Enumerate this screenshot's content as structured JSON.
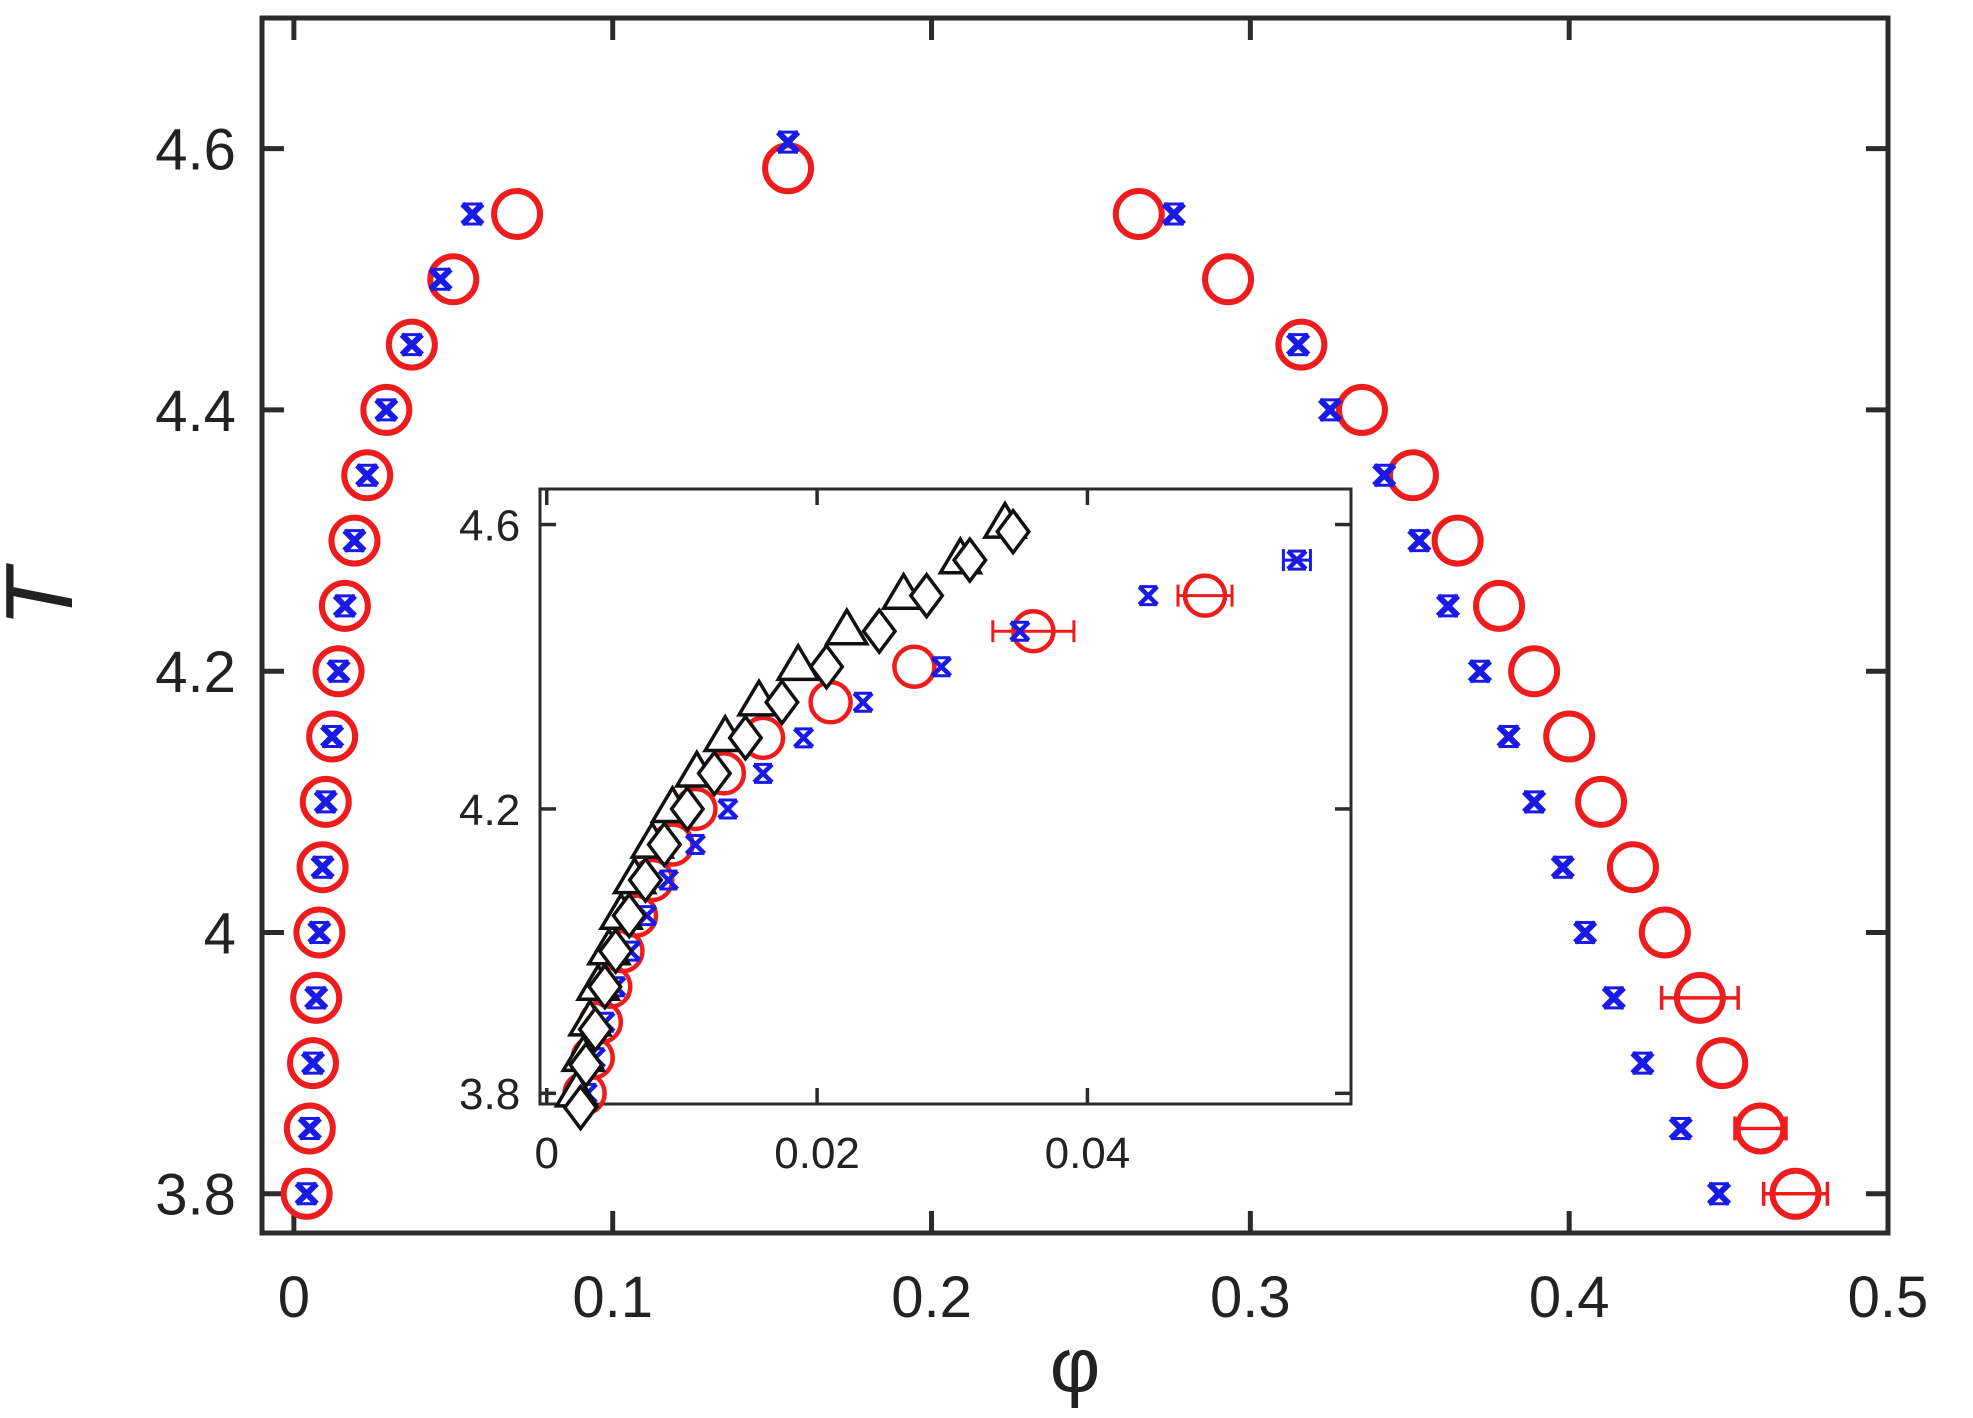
{
  "chart_data": [
    {
      "name": "main",
      "type": "scatter",
      "title": "",
      "xlabel": "φ",
      "ylabel": "T",
      "xlim": [
        -0.01,
        0.5
      ],
      "ylim": [
        3.77,
        4.7
      ],
      "xticks": [
        0,
        0.1,
        0.2,
        0.3,
        0.4,
        0.5
      ],
      "xtick_labels": [
        "0",
        "0.1",
        "0.2",
        "0.3",
        "0.4",
        "0.5"
      ],
      "yticks": [
        3.8,
        4.0,
        4.2,
        4.4,
        4.6
      ],
      "ytick_labels": [
        "3.8",
        "4",
        "4.2",
        "4.4",
        "4.6"
      ],
      "grid": false,
      "colors": {
        "red": "#ee1c1c",
        "blue": "#1a1ae6",
        "black": "#111111"
      },
      "series": [
        {
          "name": "red circles",
          "marker": "circle",
          "color": "#ee1c1c",
          "points": [
            [
              0.004,
              3.8
            ],
            [
              0.005,
              3.85
            ],
            [
              0.006,
              3.9
            ],
            [
              0.007,
              3.95
            ],
            [
              0.008,
              4.0
            ],
            [
              0.009,
              4.05
            ],
            [
              0.01,
              4.1
            ],
            [
              0.012,
              4.15
            ],
            [
              0.014,
              4.2
            ],
            [
              0.016,
              4.25
            ],
            [
              0.019,
              4.3
            ],
            [
              0.023,
              4.35
            ],
            [
              0.029,
              4.4
            ],
            [
              0.037,
              4.45
            ],
            [
              0.05,
              4.5
            ],
            [
              0.07,
              4.55
            ],
            [
              0.155,
              4.585
            ],
            [
              0.265,
              4.55
            ],
            [
              0.293,
              4.5
            ],
            [
              0.316,
              4.45
            ],
            [
              0.335,
              4.4
            ],
            [
              0.351,
              4.35
            ],
            [
              0.365,
              4.3
            ],
            [
              0.378,
              4.25
            ],
            [
              0.389,
              4.2
            ],
            [
              0.4,
              4.15
            ],
            [
              0.41,
              4.1
            ],
            [
              0.42,
              4.05
            ],
            [
              0.43,
              4.0
            ],
            [
              0.441,
              3.95
            ],
            [
              0.448,
              3.9
            ],
            [
              0.46,
              3.85
            ],
            [
              0.471,
              3.8
            ]
          ],
          "xerr": [
            0,
            0,
            0,
            0,
            0,
            0,
            0,
            0,
            0,
            0,
            0,
            0,
            0,
            0,
            0,
            0,
            0,
            0,
            0,
            0,
            0,
            0,
            0,
            0,
            0,
            0,
            0,
            0,
            0,
            0.012,
            0,
            0.008,
            0.01
          ]
        },
        {
          "name": "blue crosses",
          "marker": "x",
          "color": "#1a1ae6",
          "points": [
            [
              0.004,
              3.8
            ],
            [
              0.005,
              3.85
            ],
            [
              0.006,
              3.9
            ],
            [
              0.007,
              3.95
            ],
            [
              0.008,
              4.0
            ],
            [
              0.009,
              4.05
            ],
            [
              0.01,
              4.1
            ],
            [
              0.012,
              4.15
            ],
            [
              0.014,
              4.2
            ],
            [
              0.016,
              4.25
            ],
            [
              0.019,
              4.3
            ],
            [
              0.023,
              4.35
            ],
            [
              0.029,
              4.4
            ],
            [
              0.037,
              4.45
            ],
            [
              0.046,
              4.5
            ],
            [
              0.056,
              4.55
            ],
            [
              0.155,
              4.605
            ],
            [
              0.276,
              4.55
            ],
            [
              0.315,
              4.45
            ],
            [
              0.325,
              4.4
            ],
            [
              0.342,
              4.35
            ],
            [
              0.353,
              4.3
            ],
            [
              0.362,
              4.25
            ],
            [
              0.372,
              4.2
            ],
            [
              0.381,
              4.15
            ],
            [
              0.389,
              4.1
            ],
            [
              0.398,
              4.05
            ],
            [
              0.405,
              4.0
            ],
            [
              0.414,
              3.95
            ],
            [
              0.423,
              3.9
            ],
            [
              0.435,
              3.85
            ],
            [
              0.447,
              3.8
            ]
          ]
        }
      ]
    },
    {
      "name": "inset",
      "type": "scatter",
      "title": "",
      "xlabel": "",
      "ylabel": "",
      "xlim": [
        -0.0005,
        0.0595
      ],
      "ylim": [
        3.785,
        4.65
      ],
      "xticks": [
        0,
        0.02,
        0.04
      ],
      "xtick_labels": [
        "0",
        "0.02",
        "0.04"
      ],
      "yticks": [
        3.8,
        4.2,
        4.6
      ],
      "ytick_labels": [
        "3.8",
        "4.2",
        "4.6"
      ],
      "grid": false,
      "series": [
        {
          "name": "red circles",
          "marker": "circle",
          "color": "#ee1c1c",
          "points": [
            [
              0.0028,
              3.8
            ],
            [
              0.0034,
              3.85
            ],
            [
              0.004,
              3.9
            ],
            [
              0.0047,
              3.95
            ],
            [
              0.0056,
              4.0
            ],
            [
              0.0066,
              4.05
            ],
            [
              0.0078,
              4.1
            ],
            [
              0.0093,
              4.15
            ],
            [
              0.011,
              4.2
            ],
            [
              0.0131,
              4.25
            ],
            [
              0.016,
              4.3
            ],
            [
              0.021,
              4.35
            ],
            [
              0.0272,
              4.4
            ],
            [
              0.036,
              4.45
            ],
            [
              0.0487,
              4.5
            ]
          ],
          "xerr": [
            0,
            0,
            0,
            0,
            0,
            0,
            0,
            0,
            0,
            0,
            0,
            0,
            0,
            0.003,
            0.002
          ]
        },
        {
          "name": "blue crosses",
          "marker": "x",
          "color": "#1a1ae6",
          "points": [
            [
              0.003,
              3.8
            ],
            [
              0.0036,
              3.85
            ],
            [
              0.0043,
              3.9
            ],
            [
              0.0051,
              3.95
            ],
            [
              0.0062,
              4.0
            ],
            [
              0.0074,
              4.05
            ],
            [
              0.009,
              4.1
            ],
            [
              0.011,
              4.15
            ],
            [
              0.0134,
              4.2
            ],
            [
              0.016,
              4.25
            ],
            [
              0.019,
              4.3
            ],
            [
              0.0234,
              4.35
            ],
            [
              0.0292,
              4.4
            ],
            [
              0.035,
              4.45
            ],
            [
              0.0445,
              4.5
            ],
            [
              0.0555,
              4.55
            ]
          ],
          "xerr": [
            0,
            0,
            0,
            0,
            0,
            0,
            0,
            0,
            0,
            0,
            0,
            0,
            0,
            0,
            0,
            0.001
          ]
        },
        {
          "name": "black triangles",
          "marker": "triangle",
          "color": "#111111",
          "points": [
            [
              0.0022,
              3.8
            ],
            [
              0.0027,
              3.85
            ],
            [
              0.0032,
              3.9
            ],
            [
              0.0038,
              3.95
            ],
            [
              0.0046,
              4.0
            ],
            [
              0.0055,
              4.05
            ],
            [
              0.0065,
              4.1
            ],
            [
              0.0078,
              4.15
            ],
            [
              0.0093,
              4.2
            ],
            [
              0.0111,
              4.25
            ],
            [
              0.0132,
              4.3
            ],
            [
              0.0157,
              4.35
            ],
            [
              0.0186,
              4.4
            ],
            [
              0.0222,
              4.45
            ],
            [
              0.0264,
              4.5
            ],
            [
              0.0306,
              4.55
            ],
            [
              0.0339,
              4.6
            ]
          ]
        },
        {
          "name": "black diamonds",
          "marker": "diamond",
          "color": "#111111",
          "points": [
            [
              0.0025,
              3.78
            ],
            [
              0.0029,
              3.84
            ],
            [
              0.0036,
              3.89
            ],
            [
              0.0043,
              3.95
            ],
            [
              0.0051,
              4.0
            ],
            [
              0.0061,
              4.05
            ],
            [
              0.0073,
              4.1
            ],
            [
              0.0087,
              4.15
            ],
            [
              0.0104,
              4.2
            ],
            [
              0.0124,
              4.25
            ],
            [
              0.0147,
              4.3
            ],
            [
              0.0174,
              4.35
            ],
            [
              0.0207,
              4.4
            ],
            [
              0.0246,
              4.45
            ],
            [
              0.0281,
              4.5
            ],
            [
              0.0313,
              4.55
            ],
            [
              0.0345,
              4.59
            ]
          ]
        }
      ]
    }
  ]
}
